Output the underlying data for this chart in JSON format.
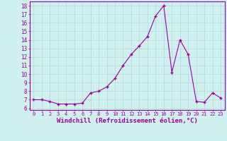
{
  "x": [
    0,
    1,
    2,
    3,
    4,
    5,
    6,
    7,
    8,
    9,
    10,
    11,
    12,
    13,
    14,
    15,
    16,
    17,
    18,
    19,
    20,
    21,
    22,
    23
  ],
  "y": [
    7.0,
    7.0,
    6.8,
    6.5,
    6.5,
    6.5,
    6.6,
    7.8,
    8.0,
    8.5,
    9.5,
    11.0,
    12.3,
    13.3,
    14.4,
    16.8,
    18.0,
    10.2,
    14.0,
    12.3,
    6.8,
    6.7,
    7.8,
    7.2
  ],
  "line_color": "#990099",
  "marker": "+",
  "bg_color": "#d0f0f0",
  "grid_color": "#b0d8d8",
  "xlabel": "Windchill (Refroidissement éolien,°C)",
  "xlabel_color": "#990099",
  "ylabel_ticks": [
    6,
    7,
    8,
    9,
    10,
    11,
    12,
    13,
    14,
    15,
    16,
    17,
    18
  ],
  "xtick_labels": [
    "0",
    "1",
    "2",
    "3",
    "4",
    "5",
    "6",
    "7",
    "8",
    "9",
    "10",
    "11",
    "12",
    "13",
    "14",
    "15",
    "16",
    "17",
    "18",
    "19",
    "20",
    "21",
    "22",
    "23"
  ],
  "ylim": [
    5.8,
    18.5
  ],
  "xlim": [
    -0.5,
    23.5
  ],
  "tick_color": "#990099",
  "spine_color": "#990099",
  "figsize": [
    3.2,
    2.0
  ],
  "dpi": 100
}
